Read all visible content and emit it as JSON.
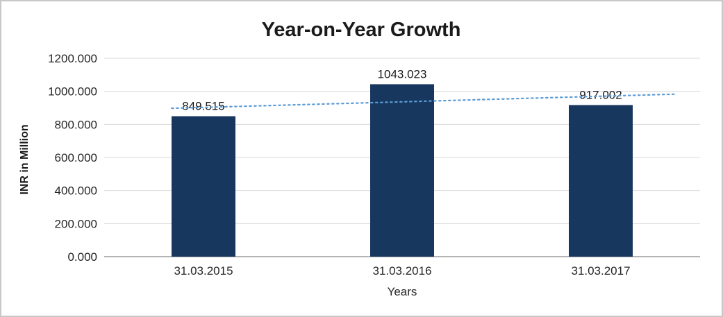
{
  "chart_data": {
    "type": "bar",
    "title": "Year-on-Year Growth",
    "categories": [
      "31.03.2015",
      "31.03.2016",
      "31.03.2017"
    ],
    "values": [
      849.515,
      1043.023,
      917.002
    ],
    "data_labels": [
      "849.515",
      "1043.023",
      "917.002"
    ],
    "xlabel": "Years",
    "ylabel": "INR in Million",
    "ylim": [
      0,
      1200
    ],
    "ytick_step": 200,
    "ytick_labels": [
      "0.000",
      "200.000",
      "400.000",
      "600.000",
      "800.000",
      "1000.000",
      "1200.000"
    ],
    "grid": "horizontal",
    "legend": "none",
    "bar_color": "#17375E",
    "gridline_color": "#d9d9d9",
    "axis_line_color": "#9b9b9b",
    "frame_border_color": "#c8c8c8",
    "trendline": {
      "type": "linear",
      "color": "#5B9BD5",
      "style": "dotted"
    }
  }
}
